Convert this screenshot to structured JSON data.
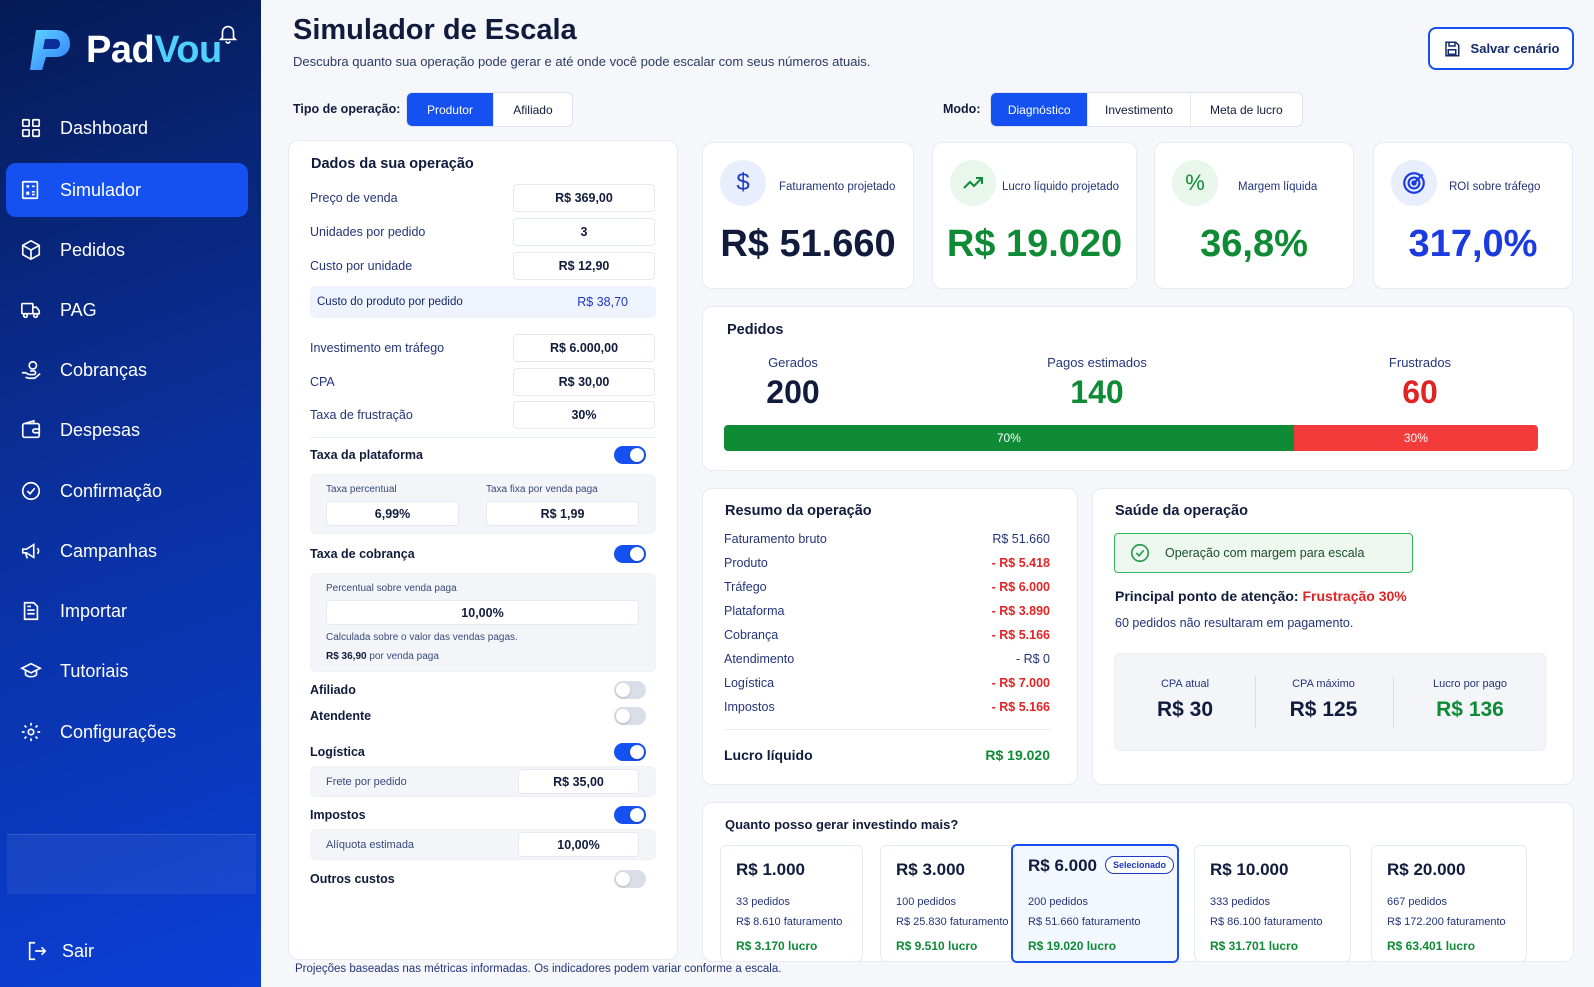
{
  "brand": {
    "name_part1": "Pad",
    "name_part2": "Vou"
  },
  "sidebar": {
    "items": [
      {
        "label": "Dashboard",
        "icon": "dashboard-icon"
      },
      {
        "label": "Simulador",
        "icon": "simulator-icon",
        "active": true
      },
      {
        "label": "Pedidos",
        "icon": "box-icon"
      },
      {
        "label": "PAG",
        "icon": "truck-icon"
      },
      {
        "label": "Cobranças",
        "icon": "hand-coin-icon"
      },
      {
        "label": "Despesas",
        "icon": "wallet-icon"
      },
      {
        "label": "Confirmação",
        "icon": "check-circle-icon"
      },
      {
        "label": "Campanhas",
        "icon": "megaphone-icon"
      },
      {
        "label": "Importar",
        "icon": "file-icon"
      },
      {
        "label": "Tutoriais",
        "icon": "graduation-cap-icon"
      },
      {
        "label": "Configurações",
        "icon": "gear-icon"
      }
    ],
    "logout": "Sair"
  },
  "header": {
    "title": "Simulador de Escala",
    "subtitle": "Descubra quanto sua operação pode gerar e até onde você pode escalar com seus números atuais.",
    "save_label": "Salvar cenário"
  },
  "operation_type": {
    "label": "Tipo de operação:",
    "options": [
      "Produtor",
      "Afiliado"
    ],
    "selected": "Produtor"
  },
  "mode": {
    "label": "Modo:",
    "options": [
      "Diagnóstico",
      "Investimento",
      "Meta de lucro"
    ],
    "selected": "Diagnóstico"
  },
  "form": {
    "title": "Dados da sua operação",
    "price_label": "Preço de venda",
    "price": "R$ 369,00",
    "units_label": "Unidades por pedido",
    "units": "3",
    "unit_cost_label": "Custo por unidade",
    "unit_cost": "R$ 12,90",
    "product_cost_label": "Custo do produto por pedido",
    "product_cost": "R$ 38,70",
    "traffic_label": "Investimento em tráfego",
    "traffic": "R$ 6.000,00",
    "cpa_label": "CPA",
    "cpa": "R$ 30,00",
    "frustration_label": "Taxa de frustração",
    "frustration": "30%",
    "platform_fee": {
      "label": "Taxa da plataforma",
      "on": true,
      "pct_label": "Taxa percentual",
      "pct": "6,99%",
      "fixed_label": "Taxa fixa por venda paga",
      "fixed": "R$ 1,99"
    },
    "billing_fee": {
      "label": "Taxa de cobrança",
      "on": true,
      "pct_label": "Percentual sobre venda paga",
      "pct": "10,00%",
      "note": "Calculada sobre o valor das vendas pagas.",
      "per_sale_value": "R$ 36,90",
      "per_sale_suffix": "por venda paga"
    },
    "affiliate": {
      "label": "Afiliado",
      "on": false
    },
    "attendant": {
      "label": "Atendente",
      "on": false
    },
    "logistics": {
      "label": "Logística",
      "on": true,
      "freight_label": "Frete por pedido",
      "freight": "R$ 35,00"
    },
    "taxes": {
      "label": "Impostos",
      "on": true,
      "rate_label": "Alíquota estimada",
      "rate": "10,00%"
    },
    "other": {
      "label": "Outros custos",
      "on": false
    }
  },
  "kpis": [
    {
      "label": "Faturamento projetado",
      "value": "R$ 51.660",
      "icon": "dollar-icon",
      "color": "#111b3c"
    },
    {
      "label": "Lucro líquido projetado",
      "value": "R$ 19.020",
      "icon": "trend-up-icon",
      "color": "#0f8a35"
    },
    {
      "label": "Margem líquida",
      "value": "36,8%",
      "icon": "percent-icon",
      "color": "#0f8a35"
    },
    {
      "label": "ROI sobre tráfego",
      "value": "317,0%",
      "icon": "target-icon",
      "color": "#1b3be0"
    }
  ],
  "orders": {
    "title": "Pedidos",
    "generated_label": "Gerados",
    "generated": "200",
    "paid_label": "Pagos estimados",
    "paid": "140",
    "frustrated_label": "Frustrados",
    "frustrated": "60",
    "paid_pct": 70,
    "paid_pct_label": "70%",
    "frustrated_pct": 30,
    "frustrated_pct_label": "30%"
  },
  "summary": {
    "title": "Resumo da operação",
    "rows": [
      {
        "name": "Faturamento bruto",
        "value": "R$ 51.660",
        "kind": "pos"
      },
      {
        "name": "Produto",
        "value": "- R$ 5.418",
        "kind": "neg"
      },
      {
        "name": "Tráfego",
        "value": "- R$ 6.000",
        "kind": "neg"
      },
      {
        "name": "Plataforma",
        "value": "- R$ 3.890",
        "kind": "neg"
      },
      {
        "name": "Cobrança",
        "value": "- R$ 5.166",
        "kind": "neg"
      },
      {
        "name": "Atendimento",
        "value": "- R$ 0",
        "kind": "zero"
      },
      {
        "name": "Logística",
        "value": "- R$ 7.000",
        "kind": "neg"
      },
      {
        "name": "Impostos",
        "value": "- R$ 5.166",
        "kind": "neg"
      }
    ],
    "net_label": "Lucro líquido",
    "net_value": "R$ 19.020"
  },
  "health": {
    "title": "Saúde da operação",
    "status": "Operação com margem para escala",
    "attention_label": "Principal ponto de atenção:",
    "attention_value": "Frustração 30%",
    "note": "60 pedidos não resultaram em pagamento.",
    "metrics": [
      {
        "label": "CPA atual",
        "value": "R$ 30",
        "color": "#111b3c"
      },
      {
        "label": "CPA máximo",
        "value": "R$ 125",
        "color": "#111b3c"
      },
      {
        "label": "Lucro por pago",
        "value": "R$ 136",
        "color": "#0f8a35"
      }
    ]
  },
  "investment": {
    "title": "Quanto posso gerar investindo mais?",
    "selected_badge": "Selecionado",
    "options": [
      {
        "amount": "R$ 1.000",
        "orders": "33 pedidos",
        "revenue": "R$ 8.610 faturamento",
        "profit": "R$ 3.170 lucro"
      },
      {
        "amount": "R$ 3.000",
        "orders": "100 pedidos",
        "revenue": "R$ 25.830 faturamento",
        "profit": "R$ 9.510 lucro"
      },
      {
        "amount": "R$ 6.000",
        "orders": "200 pedidos",
        "revenue": "R$ 51.660 faturamento",
        "profit": "R$ 19.020 lucro",
        "selected": true
      },
      {
        "amount": "R$ 10.000",
        "orders": "333 pedidos",
        "revenue": "R$ 86.100 faturamento",
        "profit": "R$ 31.701 lucro"
      },
      {
        "amount": "R$ 20.000",
        "orders": "667 pedidos",
        "revenue": "R$ 172.200 faturamento",
        "profit": "R$ 63.401 lucro"
      }
    ]
  },
  "footer": "Projeções baseadas nas métricas informadas. Os indicadores podem variar conforme a escala."
}
